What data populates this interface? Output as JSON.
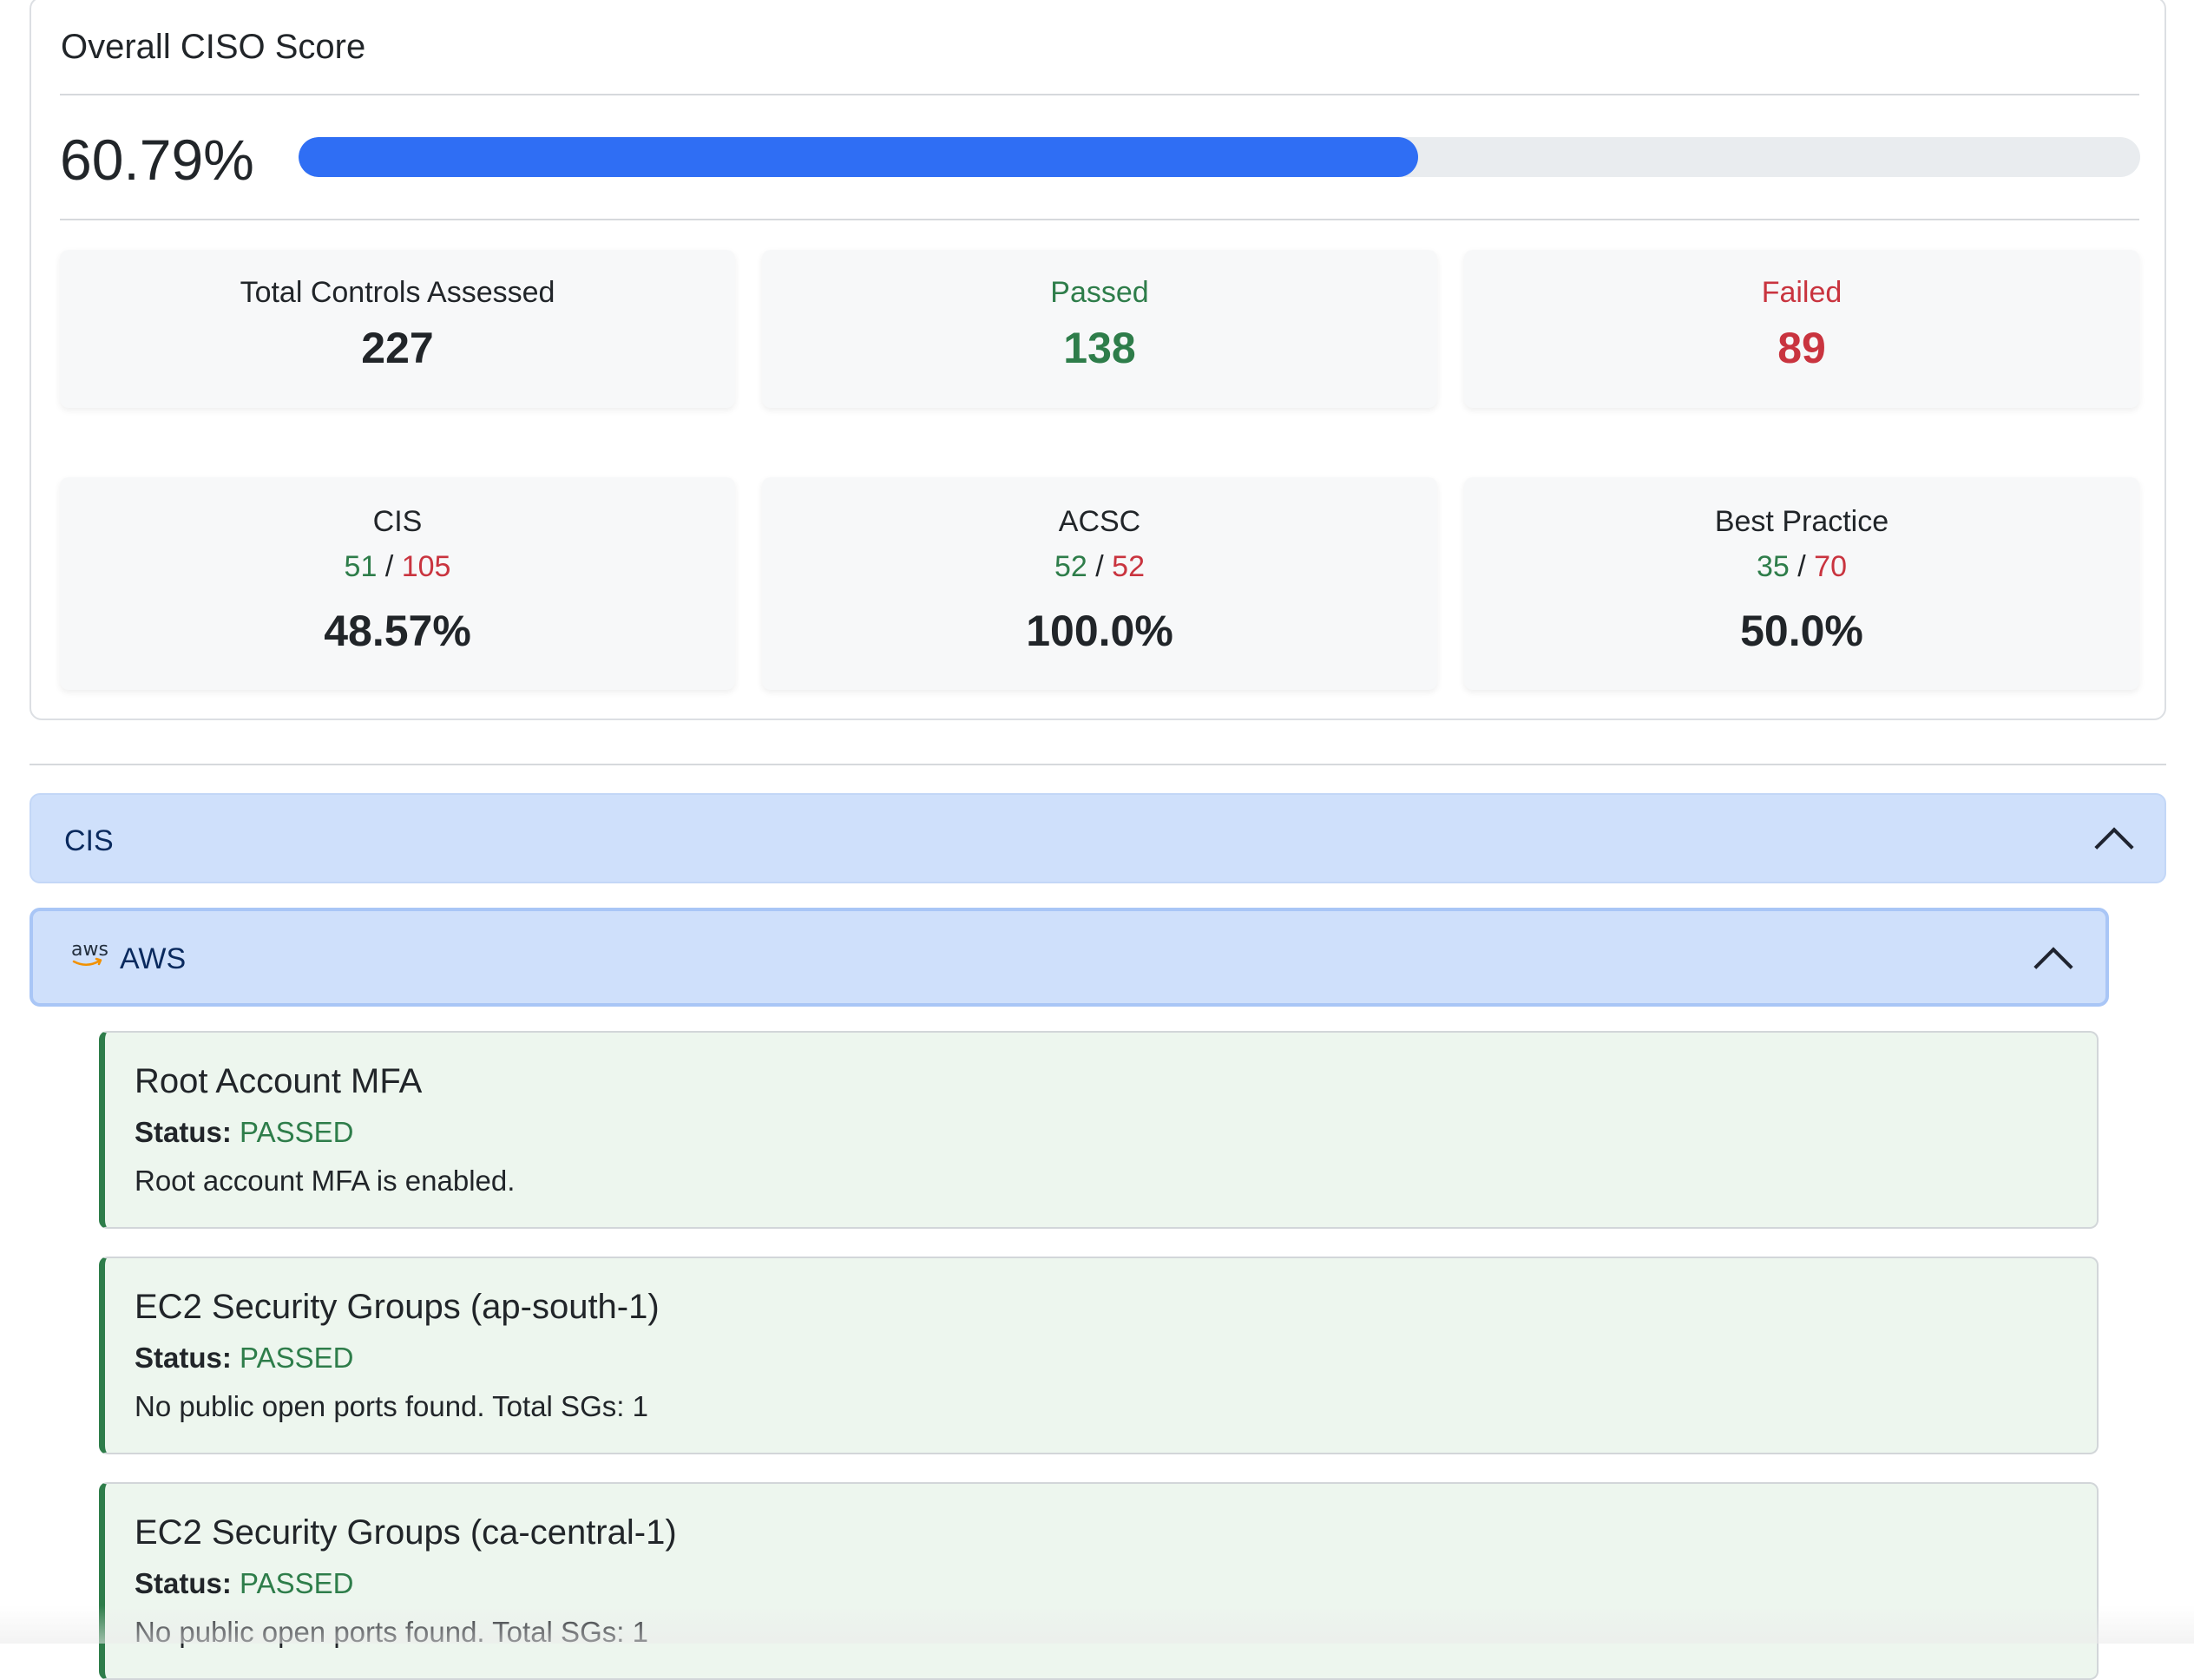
{
  "overall": {
    "title": "Overall CISO Score",
    "score_text": "60.79%",
    "score_fraction": 0.6079,
    "accent_color": "#2f6ef4"
  },
  "summary": {
    "total": {
      "label": "Total Controls Assessed",
      "value": "227"
    },
    "passed": {
      "label": "Passed",
      "value": "138"
    },
    "failed": {
      "label": "Failed",
      "value": "89"
    }
  },
  "frameworks": [
    {
      "name": "CIS",
      "passed": "51",
      "separator": "/",
      "total": "105",
      "percent": "48.57%"
    },
    {
      "name": "ACSC",
      "passed": "52",
      "separator": "/",
      "total": "52",
      "percent": "100.0%"
    },
    {
      "name": "Best Practice",
      "passed": "35",
      "separator": "/",
      "total": "70",
      "percent": "50.0%"
    }
  ],
  "accordion": {
    "title": "CIS",
    "provider": {
      "logo_text": "aws",
      "title": "AWS"
    }
  },
  "controls": [
    {
      "title": "Root Account MFA",
      "status_label": "Status:",
      "status": "PASSED",
      "description": "Root account MFA is enabled."
    },
    {
      "title": "EC2 Security Groups (ap-south-1)",
      "status_label": "Status:",
      "status": "PASSED",
      "description": "No public open ports found. Total SGs: 1"
    },
    {
      "title": "EC2 Security Groups (ca-central-1)",
      "status_label": "Status:",
      "status": "PASSED",
      "description": "No public open ports found. Total SGs: 1"
    }
  ],
  "colors": {
    "passed": "#2e7d4a",
    "failed": "#c9343f",
    "accordion_bg": "#cfe0fb"
  }
}
